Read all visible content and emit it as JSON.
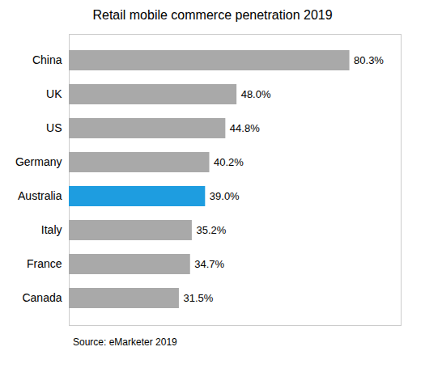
{
  "chart_data": {
    "type": "bar",
    "title": "Retail mobile commerce penetration 2019",
    "orientation": "horizontal",
    "categories": [
      "China",
      "UK",
      "US",
      "Germany",
      "Australia",
      "Italy",
      "France",
      "Canada"
    ],
    "values": [
      80.3,
      48.0,
      44.8,
      40.2,
      39.0,
      35.2,
      34.7,
      31.5
    ],
    "value_labels": [
      "80.3%",
      "48.0%",
      "44.8%",
      "40.2%",
      "39.0%",
      "35.2%",
      "34.7%",
      "31.5%"
    ],
    "colors": [
      "#a9a9a9",
      "#a9a9a9",
      "#a9a9a9",
      "#a9a9a9",
      "#1e9de0",
      "#a9a9a9",
      "#a9a9a9",
      "#a9a9a9"
    ],
    "xlim": [
      0,
      95
    ],
    "data_labels": true,
    "tick_labels": "y",
    "grid": false,
    "annotation": "Source: eMarketer 2019"
  }
}
